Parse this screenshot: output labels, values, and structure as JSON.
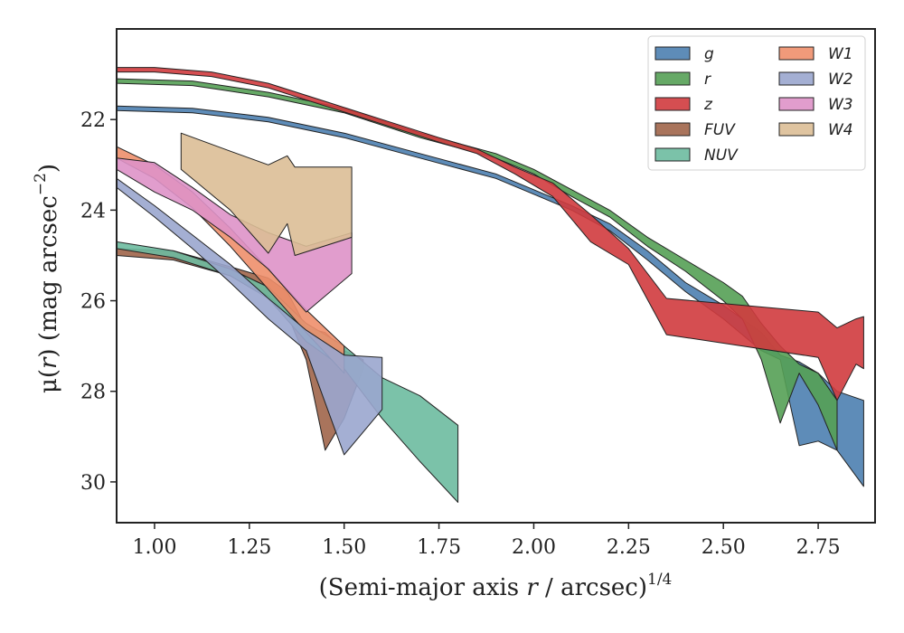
{
  "chart_data": {
    "type": "area",
    "xlabel_main": "(Semi-major axis ",
    "xlabel_var": "r",
    "xlabel_tail": " / arcsec)",
    "xlabel_sup": "1/4",
    "ylabel_main": "μ(",
    "ylabel_var": "r",
    "ylabel_tail": ") (mag arcsec",
    "ylabel_sup": "−2",
    "ylabel_close": ")",
    "xlim": [
      0.9,
      2.9
    ],
    "ylim": [
      30.9,
      20.0
    ],
    "y_inverted": true,
    "xticks": [
      1.0,
      1.25,
      1.5,
      1.75,
      2.0,
      2.25,
      2.5,
      2.75
    ],
    "xtick_labels": [
      "1.00",
      "1.25",
      "1.50",
      "1.75",
      "2.00",
      "2.25",
      "2.50",
      "2.75"
    ],
    "yticks": [
      22,
      24,
      26,
      28,
      30
    ],
    "ytick_labels": [
      "22",
      "24",
      "26",
      "28",
      "30"
    ],
    "legend_position": "top-right",
    "legend_columns": 2,
    "series": [
      {
        "name": "g",
        "color": "#4C7FB0",
        "upper": [
          [
            0.9,
            21.7
          ],
          [
            1.1,
            21.75
          ],
          [
            1.3,
            21.95
          ],
          [
            1.5,
            22.3
          ],
          [
            1.7,
            22.75
          ],
          [
            1.9,
            23.2
          ],
          [
            2.0,
            23.55
          ],
          [
            2.1,
            23.9
          ],
          [
            2.2,
            24.3
          ],
          [
            2.3,
            24.9
          ],
          [
            2.4,
            25.6
          ],
          [
            2.5,
            26.1
          ],
          [
            2.6,
            26.7
          ],
          [
            2.65,
            27.2
          ],
          [
            2.7,
            27.35
          ],
          [
            2.75,
            27.6
          ],
          [
            2.8,
            28.0
          ],
          [
            2.87,
            28.2
          ]
        ],
        "lower": [
          [
            0.9,
            21.8
          ],
          [
            1.1,
            21.85
          ],
          [
            1.3,
            22.05
          ],
          [
            1.5,
            22.4
          ],
          [
            1.7,
            22.85
          ],
          [
            1.9,
            23.3
          ],
          [
            2.0,
            23.65
          ],
          [
            2.1,
            24.0
          ],
          [
            2.2,
            24.45
          ],
          [
            2.3,
            25.1
          ],
          [
            2.4,
            25.8
          ],
          [
            2.5,
            26.4
          ],
          [
            2.6,
            27.1
          ],
          [
            2.65,
            27.3
          ],
          [
            2.7,
            29.2
          ],
          [
            2.75,
            29.1
          ],
          [
            2.8,
            29.3
          ],
          [
            2.87,
            30.1
          ]
        ]
      },
      {
        "name": "r",
        "color": "#55A055",
        "upper": [
          [
            0.9,
            21.1
          ],
          [
            1.1,
            21.15
          ],
          [
            1.3,
            21.4
          ],
          [
            1.5,
            21.75
          ],
          [
            1.7,
            22.3
          ],
          [
            1.9,
            22.75
          ],
          [
            2.0,
            23.1
          ],
          [
            2.1,
            23.55
          ],
          [
            2.2,
            24.0
          ],
          [
            2.3,
            24.6
          ],
          [
            2.4,
            25.1
          ],
          [
            2.5,
            25.6
          ],
          [
            2.55,
            25.9
          ],
          [
            2.6,
            26.5
          ],
          [
            2.65,
            27.0
          ],
          [
            2.7,
            27.4
          ],
          [
            2.75,
            27.6
          ],
          [
            2.8,
            28.2
          ]
        ],
        "lower": [
          [
            0.9,
            21.2
          ],
          [
            1.1,
            21.25
          ],
          [
            1.3,
            21.5
          ],
          [
            1.5,
            21.85
          ],
          [
            1.7,
            22.4
          ],
          [
            1.9,
            22.85
          ],
          [
            2.0,
            23.2
          ],
          [
            2.1,
            23.7
          ],
          [
            2.2,
            24.15
          ],
          [
            2.3,
            24.8
          ],
          [
            2.4,
            25.35
          ],
          [
            2.5,
            26.0
          ],
          [
            2.55,
            26.4
          ],
          [
            2.6,
            27.3
          ],
          [
            2.65,
            28.7
          ],
          [
            2.7,
            27.6
          ],
          [
            2.75,
            28.3
          ],
          [
            2.8,
            29.3
          ]
        ]
      },
      {
        "name": "z",
        "color": "#D03B3E",
        "upper": [
          [
            0.9,
            20.85
          ],
          [
            1.0,
            20.85
          ],
          [
            1.15,
            20.95
          ],
          [
            1.3,
            21.2
          ],
          [
            1.45,
            21.6
          ],
          [
            1.6,
            22.0
          ],
          [
            1.75,
            22.4
          ],
          [
            1.85,
            22.65
          ],
          [
            1.95,
            23.05
          ],
          [
            2.05,
            23.4
          ],
          [
            2.15,
            24.1
          ],
          [
            2.25,
            24.85
          ],
          [
            2.35,
            25.95
          ],
          [
            2.75,
            26.25
          ],
          [
            2.8,
            26.6
          ],
          [
            2.85,
            26.4
          ],
          [
            2.87,
            26.35
          ]
        ],
        "lower": [
          [
            0.9,
            20.95
          ],
          [
            1.0,
            20.95
          ],
          [
            1.15,
            21.05
          ],
          [
            1.3,
            21.3
          ],
          [
            1.45,
            21.7
          ],
          [
            1.6,
            22.1
          ],
          [
            1.75,
            22.5
          ],
          [
            1.85,
            22.75
          ],
          [
            1.95,
            23.2
          ],
          [
            2.05,
            23.7
          ],
          [
            2.15,
            24.7
          ],
          [
            2.25,
            25.2
          ],
          [
            2.35,
            26.75
          ],
          [
            2.75,
            27.25
          ],
          [
            2.8,
            28.2
          ],
          [
            2.85,
            27.4
          ],
          [
            2.87,
            27.5
          ]
        ]
      },
      {
        "name": "FUV",
        "color": "#A0654A",
        "upper": [
          [
            0.9,
            24.85
          ],
          [
            1.05,
            24.9
          ],
          [
            1.2,
            25.25
          ],
          [
            1.3,
            25.5
          ],
          [
            1.35,
            25.8
          ],
          [
            1.4,
            26.6
          ],
          [
            1.45,
            26.7
          ],
          [
            1.5,
            27.1
          ],
          [
            1.55,
            27.3
          ]
        ],
        "lower": [
          [
            0.9,
            25.0
          ],
          [
            1.05,
            25.1
          ],
          [
            1.2,
            25.45
          ],
          [
            1.3,
            25.9
          ],
          [
            1.35,
            26.3
          ],
          [
            1.4,
            27.3
          ],
          [
            1.45,
            29.3
          ],
          [
            1.5,
            28.6
          ],
          [
            1.55,
            27.5
          ]
        ]
      },
      {
        "name": "NUV",
        "color": "#6DBBA0",
        "upper": [
          [
            0.9,
            24.7
          ],
          [
            1.05,
            24.9
          ],
          [
            1.2,
            25.3
          ],
          [
            1.3,
            25.7
          ],
          [
            1.4,
            26.5
          ],
          [
            1.5,
            27.0
          ],
          [
            1.6,
            27.7
          ],
          [
            1.7,
            28.1
          ],
          [
            1.8,
            28.75
          ]
        ],
        "lower": [
          [
            0.9,
            24.85
          ],
          [
            1.05,
            25.05
          ],
          [
            1.2,
            25.45
          ],
          [
            1.3,
            25.95
          ],
          [
            1.4,
            26.9
          ],
          [
            1.5,
            27.5
          ],
          [
            1.6,
            28.6
          ],
          [
            1.7,
            29.55
          ],
          [
            1.8,
            30.45
          ]
        ]
      },
      {
        "name": "W1",
        "color": "#EE8F6C",
        "upper": [
          [
            0.9,
            22.6
          ],
          [
            1.0,
            23.0
          ],
          [
            1.1,
            23.6
          ],
          [
            1.2,
            24.4
          ],
          [
            1.3,
            25.3
          ],
          [
            1.4,
            26.2
          ],
          [
            1.5,
            27.0
          ]
        ],
        "lower": [
          [
            0.9,
            22.85
          ],
          [
            1.0,
            23.3
          ],
          [
            1.1,
            23.95
          ],
          [
            1.2,
            24.8
          ],
          [
            1.3,
            25.75
          ],
          [
            1.4,
            26.7
          ],
          [
            1.5,
            27.6
          ]
        ]
      },
      {
        "name": "W2",
        "color": "#9AA6CE",
        "upper": [
          [
            0.9,
            23.3
          ],
          [
            1.0,
            23.9
          ],
          [
            1.1,
            24.55
          ],
          [
            1.2,
            25.2
          ],
          [
            1.3,
            25.95
          ],
          [
            1.4,
            26.65
          ],
          [
            1.5,
            27.2
          ],
          [
            1.6,
            27.25
          ]
        ],
        "lower": [
          [
            0.9,
            23.5
          ],
          [
            1.0,
            24.15
          ],
          [
            1.1,
            24.85
          ],
          [
            1.2,
            25.6
          ],
          [
            1.3,
            26.4
          ],
          [
            1.4,
            27.1
          ],
          [
            1.5,
            29.4
          ],
          [
            1.6,
            28.4
          ]
        ]
      },
      {
        "name": "W3",
        "color": "#DE92C8",
        "upper": [
          [
            0.9,
            22.85
          ],
          [
            1.0,
            22.95
          ],
          [
            1.1,
            23.5
          ],
          [
            1.2,
            24.1
          ],
          [
            1.3,
            24.5
          ],
          [
            1.4,
            24.8
          ],
          [
            1.52,
            24.5
          ]
        ],
        "lower": [
          [
            0.9,
            23.1
          ],
          [
            1.0,
            23.6
          ],
          [
            1.1,
            24.0
          ],
          [
            1.2,
            24.6
          ],
          [
            1.3,
            25.3
          ],
          [
            1.4,
            26.25
          ],
          [
            1.52,
            25.4
          ]
        ]
      },
      {
        "name": "W4",
        "color": "#DCBE96",
        "upper": [
          [
            1.07,
            22.3
          ],
          [
            1.2,
            22.7
          ],
          [
            1.3,
            23.0
          ],
          [
            1.35,
            22.8
          ],
          [
            1.37,
            23.05
          ],
          [
            1.52,
            23.05
          ]
        ],
        "lower": [
          [
            1.07,
            23.1
          ],
          [
            1.2,
            24.0
          ],
          [
            1.3,
            24.95
          ],
          [
            1.35,
            24.3
          ],
          [
            1.37,
            25.0
          ],
          [
            1.52,
            24.6
          ]
        ]
      }
    ]
  }
}
